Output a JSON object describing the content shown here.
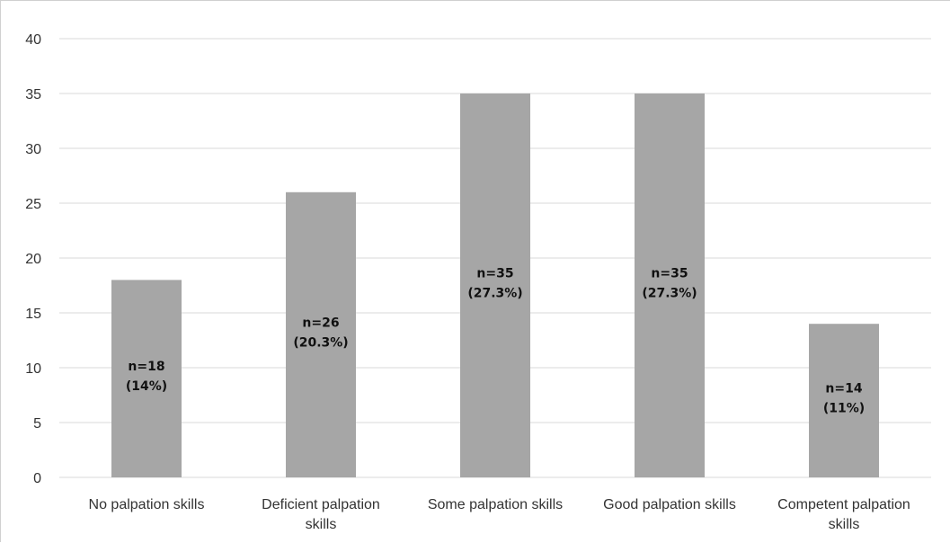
{
  "chart_data": {
    "type": "bar",
    "categories": [
      [
        "No palpation skills"
      ],
      [
        "Deficient palpation",
        "skills"
      ],
      [
        "Some palpation skills"
      ],
      [
        "Good palpation skills"
      ],
      [
        "Competent palpation",
        "skills"
      ]
    ],
    "values": [
      18,
      26,
      35,
      35,
      14
    ],
    "data_labels": [
      [
        "n=18",
        "(14%)"
      ],
      [
        "n=26",
        "(20.3%)"
      ],
      [
        "n=35",
        "(27.3%)"
      ],
      [
        "n=35",
        "(27.3%)"
      ],
      [
        "n=14",
        "(11%)"
      ]
    ],
    "title": "",
    "xlabel": "",
    "ylabel": "",
    "ylim": [
      0,
      40
    ],
    "yticks": [
      0,
      5,
      10,
      15,
      20,
      25,
      30,
      35,
      40
    ],
    "grid": true,
    "legend": "none",
    "colors": {
      "bar": "#a6a6a6",
      "grid": "#d9d9d9",
      "text": "#333333"
    }
  }
}
